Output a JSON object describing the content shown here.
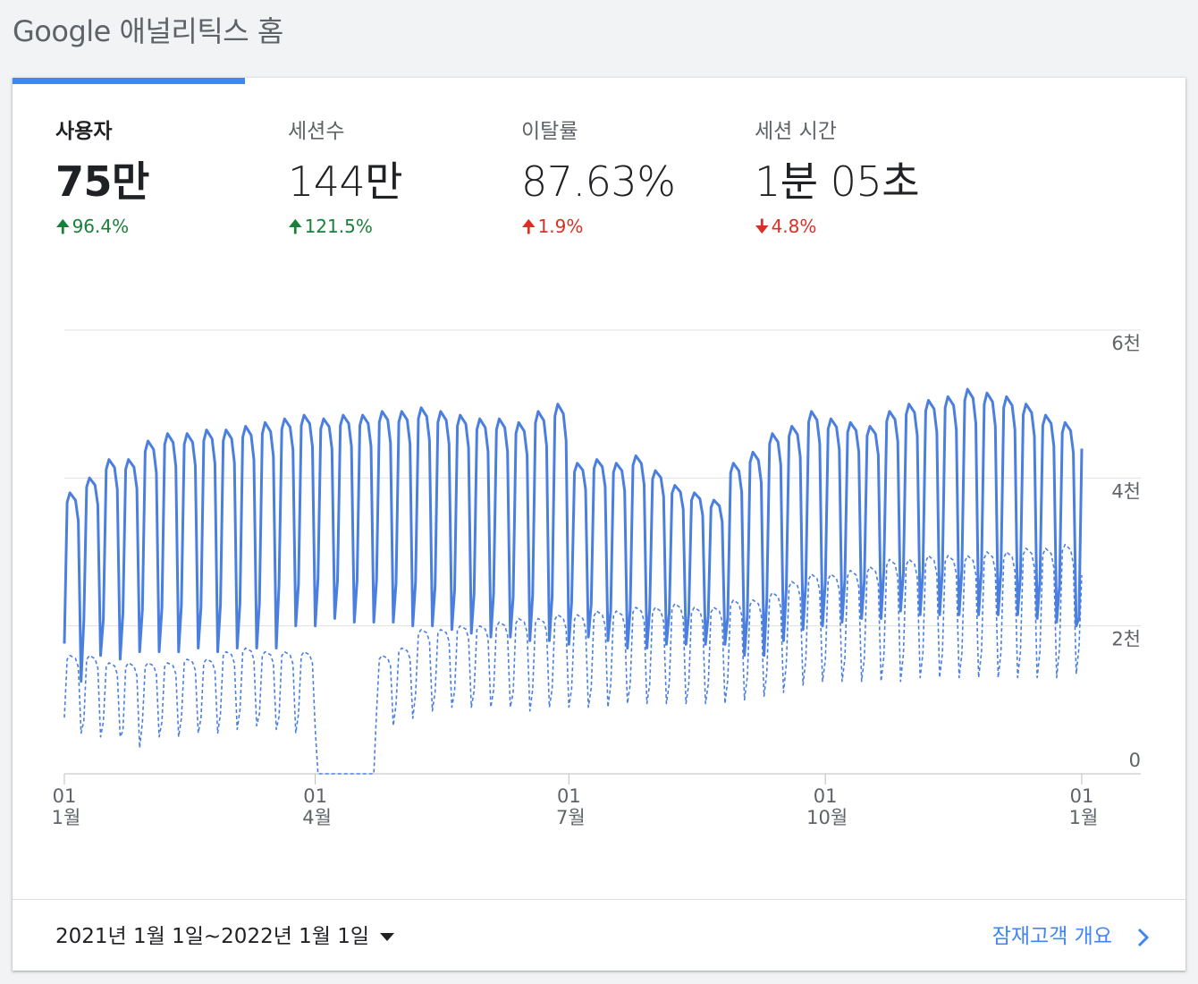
{
  "page": {
    "title": "Google 애널리틱스 홈"
  },
  "metrics": [
    {
      "label": "사용자",
      "value": "75만",
      "delta": "96.4%",
      "direction": "up",
      "status": "good"
    },
    {
      "label": "세션수",
      "value": "144만",
      "delta": "121.5%",
      "direction": "up",
      "status": "good"
    },
    {
      "label": "이탈률",
      "value": "87.63%",
      "delta": "1.9%",
      "direction": "up",
      "status": "bad"
    },
    {
      "label": "세션 시간",
      "value": "1분 05초",
      "delta": "4.8%",
      "direction": "down",
      "status": "bad"
    }
  ],
  "icons": {
    "up": "arrow-up-icon",
    "down": "arrow-down-icon",
    "caret": "caret-down-icon",
    "chevron": "chevron-right-icon"
  },
  "colors": {
    "accent": "#4285f4",
    "line": "#4a7fe0",
    "good": "#188038",
    "bad": "#d93025",
    "grid": "#e0e0e0"
  },
  "footer": {
    "date_range": "2021년 1월 1일~2022년 1월 1일",
    "link": "잠재고객 개요"
  },
  "chart_data": {
    "type": "line",
    "y_ticks": [
      "6천",
      "4천",
      "2천",
      "0"
    ],
    "y_tick_values": [
      6000,
      4000,
      2000,
      0
    ],
    "ylim": [
      0,
      6000
    ],
    "x_ticks": [
      {
        "day": "01",
        "month": "1월",
        "date": "2021-01-01"
      },
      {
        "day": "01",
        "month": "4월",
        "date": "2021-04-01"
      },
      {
        "day": "01",
        "month": "7월",
        "date": "2021-07-01"
      },
      {
        "day": "01",
        "month": "10월",
        "date": "2021-10-01"
      },
      {
        "day": "01",
        "month": "1월",
        "date": "2022-01-01"
      }
    ],
    "x_range": [
      "2021-01-01",
      "2022-01-01"
    ],
    "grid": true,
    "series": [
      {
        "style": "solid",
        "weekly_high": [
          3800,
          4000,
          4250,
          4250,
          4500,
          4600,
          4600,
          4650,
          4650,
          4700,
          4750,
          4800,
          4850,
          4800,
          4850,
          4850,
          4900,
          4900,
          4950,
          4900,
          4850,
          4800,
          4800,
          4750,
          4900,
          5000,
          4200,
          4250,
          4200,
          4300,
          4100,
          3900,
          3800,
          3700,
          4200,
          4350,
          4600,
          4700,
          4900,
          4800,
          4750,
          4700,
          4900,
          5000,
          5050,
          5100,
          5200,
          5150,
          5100,
          5000,
          4850,
          4750,
          4550
        ],
        "weekly_low": [
          1250,
          1600,
          1550,
          1650,
          1650,
          1650,
          1700,
          1650,
          1700,
          1700,
          1700,
          2000,
          2000,
          2100,
          2050,
          2050,
          2050,
          2000,
          2000,
          1950,
          1900,
          1850,
          1850,
          1800,
          1800,
          1750,
          1850,
          1800,
          1700,
          1700,
          1750,
          1750,
          1750,
          1750,
          1600,
          1600,
          1800,
          1950,
          2000,
          2050,
          2100,
          2100,
          2200,
          2150,
          2150,
          2150,
          2150,
          2150,
          2150,
          2100,
          2050,
          2000,
          1500
        ]
      },
      {
        "style": "dashed",
        "weekly_high": [
          1600,
          1600,
          1500,
          1500,
          1500,
          1500,
          1550,
          1550,
          1650,
          1700,
          1650,
          1650,
          1650,
          0,
          0,
          0,
          1600,
          1700,
          1950,
          1950,
          2000,
          2000,
          2050,
          2100,
          2100,
          2150,
          2150,
          2200,
          2200,
          2250,
          2250,
          2300,
          2250,
          2250,
          2350,
          2350,
          2450,
          2600,
          2700,
          2700,
          2750,
          2800,
          2900,
          2900,
          2950,
          2950,
          2950,
          3000,
          3000,
          3050,
          3050,
          3100,
          2750
        ],
        "weekly_low": [
          550,
          500,
          500,
          350,
          500,
          500,
          550,
          550,
          600,
          650,
          600,
          550,
          600,
          0,
          0,
          0,
          650,
          750,
          850,
          900,
          900,
          900,
          900,
          850,
          900,
          900,
          900,
          900,
          950,
          950,
          950,
          950,
          950,
          950,
          1000,
          1050,
          1100,
          1200,
          1250,
          1250,
          1250,
          1250,
          1250,
          1300,
          1300,
          1300,
          1300,
          1300,
          1300,
          1300,
          1300,
          1350,
          1450
        ]
      }
    ]
  }
}
